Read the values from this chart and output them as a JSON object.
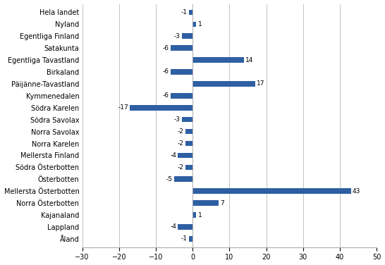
{
  "categories": [
    "Hela landet",
    "Nyland",
    "Egentliga Finland",
    "Satakunta",
    "Egentliga Tavastland",
    "Birkaland",
    "Päijänne-Tavastland",
    "Kymmenedalen",
    "Södra Karelen",
    "Södra Savolax",
    "Norra Savolax",
    "Norra Karelen",
    "Mellersta Finland",
    "Södra Österbotten",
    "Österbotten",
    "Mellersta Österbotten",
    "Norra Österbotten",
    "Kajanaland",
    "Lappland",
    "Åland"
  ],
  "values": [
    -1,
    1,
    -3,
    -6,
    14,
    -6,
    17,
    -6,
    -17,
    -3,
    -2,
    -2,
    -4,
    -2,
    -5,
    43,
    7,
    1,
    -4,
    -1
  ],
  "bar_color": "#2E5FA3",
  "xlim": [
    -30,
    50
  ],
  "xticks": [
    -30,
    -20,
    -10,
    0,
    10,
    20,
    30,
    40,
    50
  ],
  "figsize": [
    5.46,
    3.76
  ],
  "dpi": 100,
  "bar_height": 0.45,
  "label_fontsize": 6.5,
  "tick_fontsize": 7.0
}
